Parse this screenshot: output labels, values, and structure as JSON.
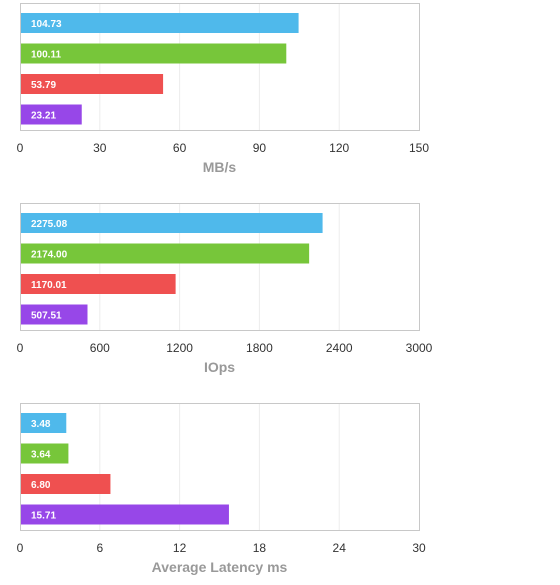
{
  "chart_data": [
    {
      "type": "bar",
      "orientation": "horizontal",
      "xlabel": "MB/s",
      "xlim": [
        0,
        150
      ],
      "xticks": [
        "0",
        "30",
        "60",
        "90",
        "120",
        "150"
      ],
      "values": [
        104.73,
        100.11,
        53.79,
        23.21
      ],
      "labels": [
        "104.73",
        "100.11",
        "53.79",
        "23.21"
      ],
      "grid": "vertical"
    },
    {
      "type": "bar",
      "orientation": "horizontal",
      "xlabel": "IOps",
      "xlim": [
        0,
        3000
      ],
      "xticks": [
        "0",
        "600",
        "1200",
        "1800",
        "2400",
        "3000"
      ],
      "values": [
        2275.08,
        2174.0,
        1170.01,
        507.51
      ],
      "labels": [
        "2275.08",
        "2174.00",
        "1170.01",
        "507.51"
      ],
      "grid": "vertical"
    },
    {
      "type": "bar",
      "orientation": "horizontal",
      "xlabel": "Average Latency ms",
      "xlim": [
        0,
        30
      ],
      "xticks": [
        "0",
        "6",
        "12",
        "18",
        "24",
        "30"
      ],
      "values": [
        3.48,
        3.64,
        6.8,
        15.71
      ],
      "labels": [
        "3.48",
        "3.64",
        "6.80",
        "15.71"
      ],
      "grid": "vertical"
    }
  ],
  "colors": [
    "#4fb9eb",
    "#77c63a",
    "#ef5050",
    "#9747e8"
  ]
}
